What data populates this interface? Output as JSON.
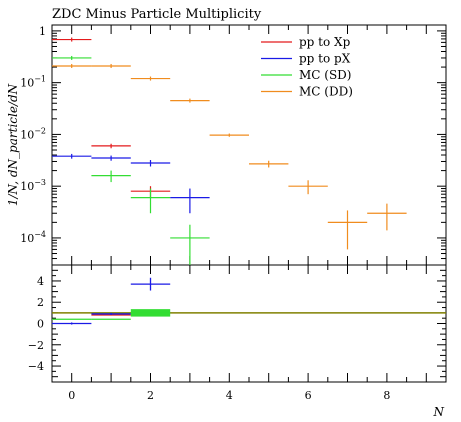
{
  "title": "ZDC Minus Particle Multiplicity",
  "chart_data": [
    {
      "type": "scatter",
      "panel": "main",
      "title": "ZDC Minus Particle Multiplicity",
      "ylabel": "1/N, dN_particle/dN",
      "xlabel": "",
      "y_scale": "log",
      "xlim": [
        -0.5,
        9.5
      ],
      "ylim": [
        3e-05,
        1.3
      ],
      "x_ticks": [
        0,
        2,
        4,
        6,
        8
      ],
      "y_tick_labels": [
        "1",
        "10^{-1}",
        "10^{-2}",
        "10^{-3}",
        "10^{-4}"
      ],
      "legend_position": "top-right",
      "series": [
        {
          "name": "pp to Xp",
          "color": "#e41a1c",
          "points": [
            {
              "x": 0,
              "y": 0.68,
              "xerr": 0.5,
              "yerr": 0
            },
            {
              "x": 1,
              "y": 0.006,
              "xerr": 0.5,
              "yerr": 0.0006
            },
            {
              "x": 2,
              "y": 0.0008,
              "xerr": 0.5,
              "yerr": 0.0002
            }
          ]
        },
        {
          "name": "pp to pX",
          "color": "#1a1ae6",
          "points": [
            {
              "x": 0,
              "y": 0.0038,
              "xerr": 0.5,
              "yerr": 0.0004
            },
            {
              "x": 1,
              "y": 0.0035,
              "xerr": 0.5,
              "yerr": 0.0004
            },
            {
              "x": 2,
              "y": 0.0028,
              "xerr": 0.5,
              "yerr": 0.0004
            },
            {
              "x": 3,
              "y": 0.0006,
              "xerr": 0.5,
              "yerr": 0.0003
            }
          ]
        },
        {
          "name": "MC (SD)",
          "color": "#33dd33",
          "points": [
            {
              "x": 0,
              "y": 0.3,
              "xerr": 0.5,
              "yerr": 0
            },
            {
              "x": 1,
              "y": 0.0016,
              "xerr": 0.5,
              "yerr": 0.0004
            },
            {
              "x": 2,
              "y": 0.0006,
              "xerr": 0.5,
              "yerr": 0.0003
            },
            {
              "x": 3,
              "y": 0.0001,
              "xerr": 0.5,
              "yerr": 8e-05
            }
          ]
        },
        {
          "name": "MC (DD)",
          "color": "#f08c1e",
          "points": [
            {
              "x": 0,
              "y": 0.21,
              "xerr": 0.5,
              "yerr": 0
            },
            {
              "x": 1,
              "y": 0.21,
              "xerr": 0.5,
              "yerr": 0
            },
            {
              "x": 2,
              "y": 0.12,
              "xerr": 0.5,
              "yerr": 0
            },
            {
              "x": 3,
              "y": 0.045,
              "xerr": 0.5,
              "yerr": 0.002
            },
            {
              "x": 4,
              "y": 0.0097,
              "xerr": 0.5,
              "yerr": 0.0007
            },
            {
              "x": 5,
              "y": 0.0027,
              "xerr": 0.5,
              "yerr": 0.0004
            },
            {
              "x": 6,
              "y": 0.001,
              "xerr": 0.5,
              "yerr": 0.0003
            },
            {
              "x": 7,
              "y": 0.0002,
              "xerr": 0.5,
              "yerr": 0.00014
            },
            {
              "x": 8,
              "y": 0.0003,
              "xerr": 0.5,
              "yerr": 0.00016
            }
          ]
        }
      ]
    },
    {
      "type": "scatter",
      "panel": "ratio",
      "xlabel": "N",
      "ylabel": "",
      "xlim": [
        -0.5,
        9.5
      ],
      "ylim": [
        -5.5,
        5.5
      ],
      "x_ticks": [
        0,
        2,
        4,
        6,
        8
      ],
      "y_ticks": [
        4,
        2,
        0,
        -2,
        -4
      ],
      "reference_line": {
        "y": 1,
        "color": "#808000"
      },
      "series": [
        {
          "name": "pp to Xp",
          "color": "#e41a1c",
          "points": [
            {
              "x": 1,
              "y": 0.8,
              "xerr": 0.5
            },
            {
              "x": 2,
              "y": 1.0,
              "xerr": 0.5
            }
          ]
        },
        {
          "name": "pp to pX",
          "color": "#1a1ae6",
          "points": [
            {
              "x": 0,
              "y": 0.0,
              "xerr": 0.5,
              "yerr": 0.1
            },
            {
              "x": 1,
              "y": 0.9,
              "xerr": 0.5,
              "yerr": 0.1
            },
            {
              "x": 2,
              "y": 3.7,
              "xerr": 0.5,
              "yerr": 0.6
            }
          ]
        },
        {
          "name": "MC (SD)",
          "color": "#33dd33",
          "points": [
            {
              "x": 0,
              "y": 0.4,
              "xerr": 0.5
            },
            {
              "x": 1,
              "y": 0.4,
              "xerr": 0.5
            },
            {
              "x": 2,
              "y": 1.0,
              "xerr": 0.5,
              "band": 0.35
            }
          ]
        },
        {
          "name": "MC (DD)",
          "color": "#f08c1e",
          "points": []
        }
      ]
    }
  ]
}
